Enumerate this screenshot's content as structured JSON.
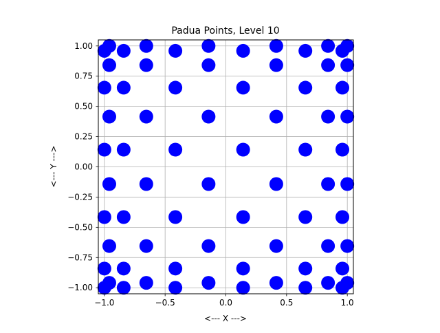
{
  "chart_data": {
    "type": "scatter",
    "title": "Padua Points, Level 10",
    "xlabel": "<--- X --->",
    "ylabel": "<--- Y --->",
    "xlim": [
      -1.05,
      1.05
    ],
    "ylim": [
      -1.05,
      1.05
    ],
    "grid": true,
    "xticks": [
      -1.0,
      -0.5,
      0.0,
      0.5,
      1.0
    ],
    "xtick_labels": [
      "−1.0",
      "−0.5",
      "0.0",
      "0.5",
      "1.0"
    ],
    "yticks": [
      -1.0,
      -0.75,
      -0.5,
      -0.25,
      0.0,
      0.25,
      0.5,
      0.75,
      1.0
    ],
    "ytick_labels": [
      "−1.00",
      "−0.75",
      "−0.50",
      "−0.25",
      "0.00",
      "0.25",
      "0.50",
      "0.75",
      "1.00"
    ],
    "colors": {
      "marker": "#0000ff",
      "grid": "#b0b0b0",
      "axes": "#000000"
    },
    "points": [
      [
        -1.0,
        -1.0
      ],
      [
        -1.0,
        -0.8412535328
      ],
      [
        -1.0,
        -0.415415013
      ],
      [
        -1.0,
        0.1423148383
      ],
      [
        -1.0,
        0.654860734
      ],
      [
        -1.0,
        0.9594929736
      ],
      [
        -0.9594929736,
        -0.9594929736
      ],
      [
        -0.9594929736,
        -0.654860734
      ],
      [
        -0.9594929736,
        -0.1423148383
      ],
      [
        -0.9594929736,
        0.415415013
      ],
      [
        -0.9594929736,
        0.8412535328
      ],
      [
        -0.9594929736,
        1.0
      ],
      [
        -0.8412535328,
        -1.0
      ],
      [
        -0.8412535328,
        -0.8412535328
      ],
      [
        -0.8412535328,
        -0.415415013
      ],
      [
        -0.8412535328,
        0.1423148383
      ],
      [
        -0.8412535328,
        0.654860734
      ],
      [
        -0.8412535328,
        0.9594929736
      ],
      [
        -0.654860734,
        -0.9594929736
      ],
      [
        -0.654860734,
        -0.654860734
      ],
      [
        -0.654860734,
        -0.1423148383
      ],
      [
        -0.654860734,
        0.415415013
      ],
      [
        -0.654860734,
        0.8412535328
      ],
      [
        -0.654860734,
        1.0
      ],
      [
        -0.415415013,
        -1.0
      ],
      [
        -0.415415013,
        -0.8412535328
      ],
      [
        -0.415415013,
        -0.415415013
      ],
      [
        -0.415415013,
        0.1423148383
      ],
      [
        -0.415415013,
        0.654860734
      ],
      [
        -0.415415013,
        0.9594929736
      ],
      [
        -0.1423148383,
        -0.9594929736
      ],
      [
        -0.1423148383,
        -0.654860734
      ],
      [
        -0.1423148383,
        -0.1423148383
      ],
      [
        -0.1423148383,
        0.415415013
      ],
      [
        -0.1423148383,
        0.8412535328
      ],
      [
        -0.1423148383,
        1.0
      ],
      [
        0.1423148383,
        -1.0
      ],
      [
        0.1423148383,
        -0.8412535328
      ],
      [
        0.1423148383,
        -0.415415013
      ],
      [
        0.1423148383,
        0.1423148383
      ],
      [
        0.1423148383,
        0.654860734
      ],
      [
        0.1423148383,
        0.9594929736
      ],
      [
        0.415415013,
        -0.9594929736
      ],
      [
        0.415415013,
        -0.654860734
      ],
      [
        0.415415013,
        -0.1423148383
      ],
      [
        0.415415013,
        0.415415013
      ],
      [
        0.415415013,
        0.8412535328
      ],
      [
        0.415415013,
        1.0
      ],
      [
        0.654860734,
        -1.0
      ],
      [
        0.654860734,
        -0.8412535328
      ],
      [
        0.654860734,
        -0.415415013
      ],
      [
        0.654860734,
        0.1423148383
      ],
      [
        0.654860734,
        0.654860734
      ],
      [
        0.654860734,
        0.9594929736
      ],
      [
        0.8412535328,
        -0.9594929736
      ],
      [
        0.8412535328,
        -0.654860734
      ],
      [
        0.8412535328,
        -0.1423148383
      ],
      [
        0.8412535328,
        0.415415013
      ],
      [
        0.8412535328,
        0.8412535328
      ],
      [
        0.8412535328,
        1.0
      ],
      [
        0.9594929736,
        -1.0
      ],
      [
        0.9594929736,
        -0.8412535328
      ],
      [
        0.9594929736,
        -0.415415013
      ],
      [
        0.9594929736,
        0.1423148383
      ],
      [
        0.9594929736,
        0.654860734
      ],
      [
        0.9594929736,
        0.9594929736
      ],
      [
        1.0,
        -0.9594929736
      ],
      [
        1.0,
        -0.654860734
      ],
      [
        1.0,
        -0.1423148383
      ],
      [
        1.0,
        0.415415013
      ],
      [
        1.0,
        0.8412535328
      ],
      [
        1.0,
        1.0
      ]
    ]
  }
}
